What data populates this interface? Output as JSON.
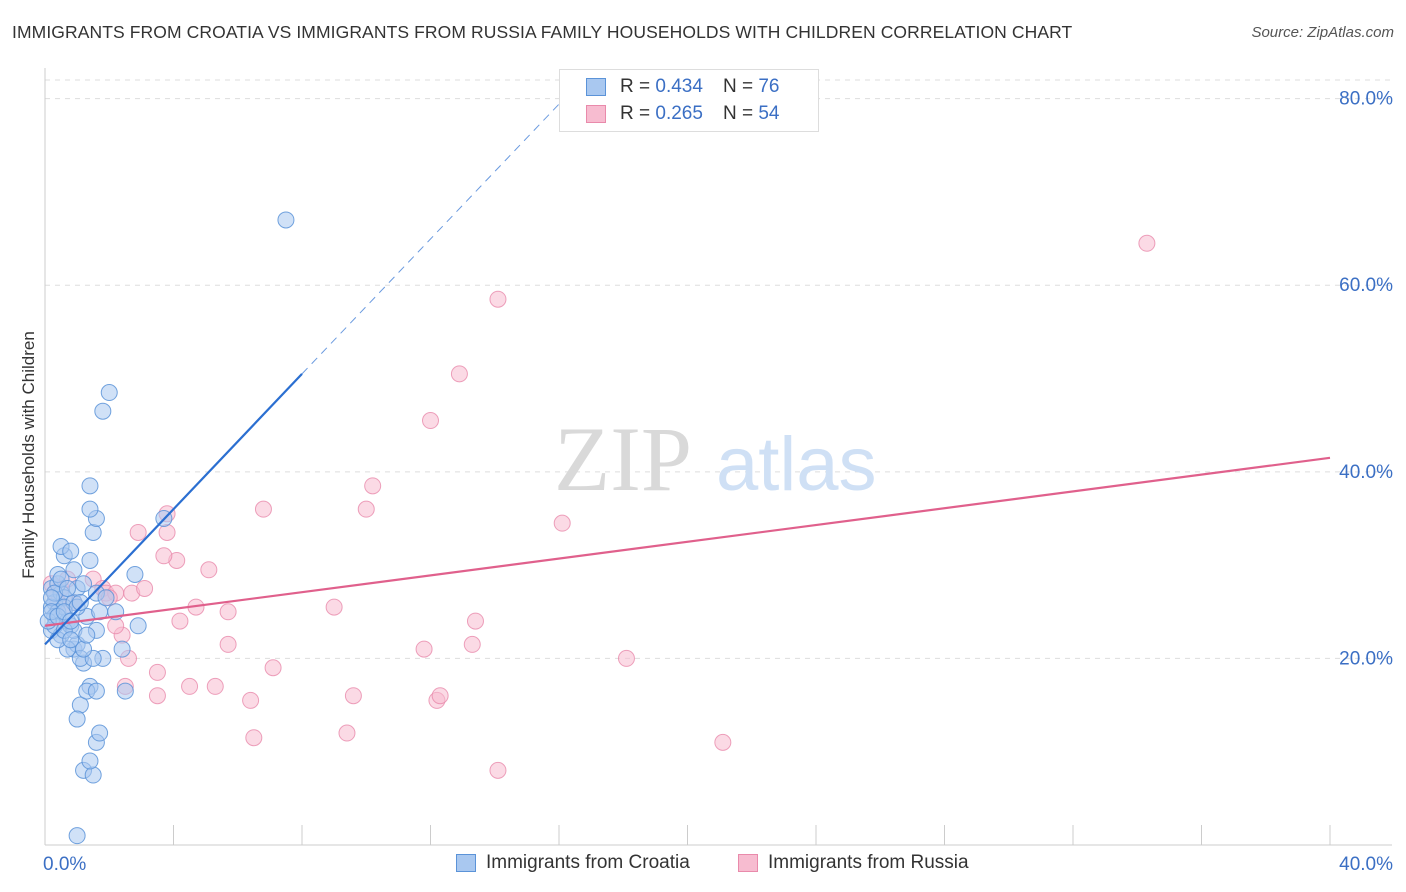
{
  "title": "IMMIGRANTS FROM CROATIA VS IMMIGRANTS FROM RUSSIA FAMILY HOUSEHOLDS WITH CHILDREN CORRELATION CHART",
  "source": "Source: ZipAtlas.com",
  "watermark": {
    "zip": "ZIP",
    "atlas": "atlas"
  },
  "legend": [
    {
      "r_label": "R =",
      "r_value": "0.434",
      "n_label": "N =",
      "n_value": "76"
    },
    {
      "r_label": "R =",
      "r_value": "0.265",
      "n_label": "N =",
      "n_value": "54"
    }
  ],
  "colors": {
    "croatia_fill": "#a9c8f0",
    "croatia_stroke": "#5b93d8",
    "croatia_line": "#2b6fd1",
    "russia_fill": "#f7bcd0",
    "russia_stroke": "#e98aab",
    "russia_line": "#e0608c",
    "axis_text": "#3b6fc4",
    "grid": "#dddddd"
  },
  "chart_data": {
    "type": "scatter",
    "title": "IMMIGRANTS FROM CROATIA VS IMMIGRANTS FROM RUSSIA FAMILY HOUSEHOLDS WITH CHILDREN CORRELATION CHART",
    "xlabel": "",
    "ylabel": "Family Households with Children",
    "xlim": [
      0,
      40
    ],
    "ylim": [
      0,
      82
    ],
    "x_ticks": [
      "0.0%",
      "40.0%"
    ],
    "y_ticks": [
      {
        "value": 20,
        "label": "20.0%"
      },
      {
        "value": 40,
        "label": "40.0%"
      },
      {
        "value": 60,
        "label": "60.0%"
      },
      {
        "value": 80,
        "label": "80.0%"
      }
    ],
    "grid": true,
    "legend_position": "top-center",
    "series": [
      {
        "name": "Immigrants from Croatia",
        "r": 0.434,
        "n": 76,
        "trend": {
          "x": [
            0.0,
            8.0
          ],
          "y": [
            21.5,
            50.5
          ]
        },
        "trend_extension": {
          "x": [
            8.0,
            16.3
          ],
          "y": [
            50.5,
            80.5
          ]
        },
        "points": [
          [
            0.2,
            27.5
          ],
          [
            0.3,
            26
          ],
          [
            0.2,
            25.5
          ],
          [
            0.4,
            25
          ],
          [
            0.3,
            24.5
          ],
          [
            0.5,
            27
          ],
          [
            0.6,
            26.5
          ],
          [
            0.4,
            28
          ],
          [
            0.2,
            23
          ],
          [
            0.5,
            22.5
          ],
          [
            0.7,
            24
          ],
          [
            0.8,
            23.5
          ],
          [
            0.6,
            25.5
          ],
          [
            0.3,
            27
          ],
          [
            0.9,
            26
          ],
          [
            1.0,
            27.5
          ],
          [
            0.4,
            29
          ],
          [
            0.6,
            31
          ],
          [
            0.5,
            32
          ],
          [
            0.8,
            31.5
          ],
          [
            1.4,
            30.5
          ],
          [
            1.5,
            33.5
          ],
          [
            1.6,
            35
          ],
          [
            1.4,
            36
          ],
          [
            1.4,
            38.5
          ],
          [
            1.8,
            46.5
          ],
          [
            2.0,
            48.5
          ],
          [
            7.5,
            67
          ],
          [
            3.7,
            35
          ],
          [
            2.8,
            29
          ],
          [
            1.6,
            27
          ],
          [
            2.2,
            25
          ],
          [
            1.3,
            24.5
          ],
          [
            0.9,
            21
          ],
          [
            1.0,
            21.5
          ],
          [
            1.2,
            19.5
          ],
          [
            1.4,
            17
          ],
          [
            1.1,
            15
          ],
          [
            1.0,
            13.5
          ],
          [
            1.3,
            16.5
          ],
          [
            1.6,
            16.5
          ],
          [
            2.5,
            16.5
          ],
          [
            1.8,
            20
          ],
          [
            1.2,
            8
          ],
          [
            1.5,
            7.5
          ],
          [
            1.4,
            9
          ],
          [
            1.6,
            11
          ],
          [
            1.7,
            12
          ],
          [
            1.0,
            1
          ],
          [
            0.7,
            21
          ],
          [
            0.9,
            23
          ],
          [
            1.1,
            20
          ],
          [
            1.5,
            20
          ],
          [
            1.2,
            21
          ],
          [
            0.4,
            22
          ],
          [
            0.3,
            23.5
          ],
          [
            0.6,
            23
          ],
          [
            0.8,
            22
          ],
          [
            1.7,
            25
          ],
          [
            1.6,
            23
          ],
          [
            2.4,
            21
          ],
          [
            2.9,
            23.5
          ],
          [
            0.2,
            26.5
          ],
          [
            0.5,
            28.5
          ],
          [
            0.7,
            27.5
          ],
          [
            0.9,
            29.5
          ],
          [
            1.2,
            28
          ],
          [
            1.3,
            22.5
          ],
          [
            0.1,
            24
          ],
          [
            0.2,
            25
          ],
          [
            0.4,
            24.5
          ],
          [
            0.6,
            25
          ],
          [
            0.8,
            24
          ],
          [
            1.0,
            25.5
          ],
          [
            1.1,
            26
          ],
          [
            1.9,
            26.5
          ]
        ]
      },
      {
        "name": "Immigrants from Russia",
        "r": 0.265,
        "n": 54,
        "trend": {
          "x": [
            0.0,
            40.0
          ],
          "y": [
            23.5,
            41.5
          ]
        },
        "points": [
          [
            0.2,
            28
          ],
          [
            0.3,
            27
          ],
          [
            0.5,
            27.5
          ],
          [
            0.4,
            26
          ],
          [
            0.7,
            28.5
          ],
          [
            0.6,
            25.5
          ],
          [
            1.5,
            28.5
          ],
          [
            1.8,
            27.5
          ],
          [
            1.9,
            27
          ],
          [
            2.2,
            27
          ],
          [
            2.0,
            26.5
          ],
          [
            2.7,
            27
          ],
          [
            3.1,
            27.5
          ],
          [
            2.9,
            33.5
          ],
          [
            3.8,
            35.5
          ],
          [
            3.8,
            33.5
          ],
          [
            4.1,
            30.5
          ],
          [
            3.7,
            31
          ],
          [
            5.1,
            29.5
          ],
          [
            6.8,
            36
          ],
          [
            10.2,
            38.5
          ],
          [
            10.0,
            36
          ],
          [
            12.0,
            45.5
          ],
          [
            12.9,
            50.5
          ],
          [
            14.1,
            58.5
          ],
          [
            16.1,
            34.5
          ],
          [
            34.3,
            64.5
          ],
          [
            4.7,
            25.5
          ],
          [
            5.7,
            25
          ],
          [
            9.0,
            25.5
          ],
          [
            13.4,
            24
          ],
          [
            4.2,
            24
          ],
          [
            2.4,
            22.5
          ],
          [
            2.6,
            20
          ],
          [
            2.5,
            17
          ],
          [
            3.5,
            18.5
          ],
          [
            3.5,
            16
          ],
          [
            4.5,
            17
          ],
          [
            5.3,
            17
          ],
          [
            5.7,
            21.5
          ],
          [
            7.1,
            19
          ],
          [
            6.4,
            15.5
          ],
          [
            6.5,
            11.5
          ],
          [
            9.6,
            16
          ],
          [
            9.4,
            12
          ],
          [
            11.8,
            21
          ],
          [
            12.2,
            15.5
          ],
          [
            12.3,
            16
          ],
          [
            13.3,
            21.5
          ],
          [
            14.1,
            8
          ],
          [
            18.1,
            20
          ],
          [
            21.1,
            11
          ],
          [
            2.2,
            23.5
          ],
          [
            0.9,
            26
          ]
        ]
      }
    ]
  },
  "bottom_legend": [
    "Immigrants from Croatia",
    "Immigrants from Russia"
  ]
}
